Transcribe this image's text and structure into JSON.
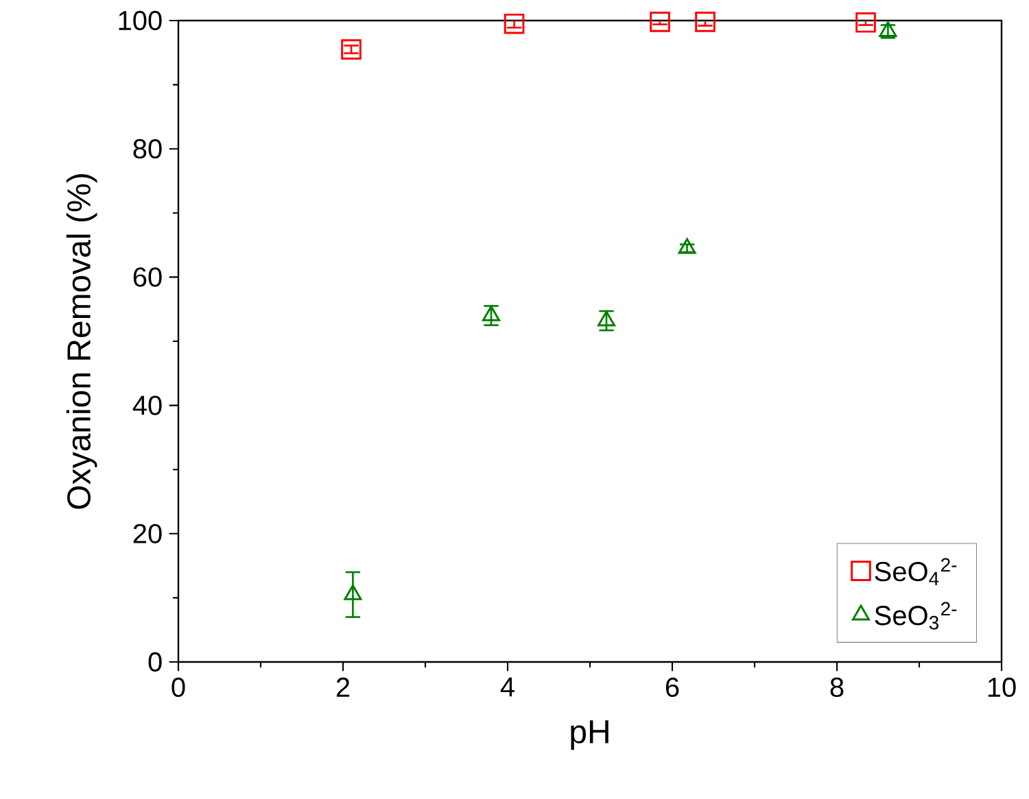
{
  "chart_data": {
    "type": "scatter",
    "xlabel": "pH",
    "ylabel": "Oxyanion Removal (%)",
    "xlim": [
      0,
      10
    ],
    "xticks": [
      0,
      2,
      4,
      6,
      8,
      10
    ],
    "ylim": [
      0,
      100
    ],
    "yticks": [
      0,
      20,
      40,
      60,
      80,
      100
    ],
    "legend": "bottom right",
    "grid": false,
    "series": [
      {
        "name": "SeO$_{4}$$^{2-}$",
        "color": "#ff0000",
        "marker": "square",
        "x": [
          2.1,
          4.08,
          5.85,
          6.4,
          8.35
        ],
        "values": [
          95.5,
          99.5,
          99.8,
          99.8,
          99.7
        ],
        "errors": [
          0.6,
          0.6,
          0.4,
          0.6,
          0.4
        ]
      },
      {
        "name": "SeO$_{3}$$^{2-}$",
        "color": "#008000",
        "marker": "triangle",
        "x": [
          2.12,
          3.8,
          5.2,
          6.18,
          8.62
        ],
        "values": [
          10.5,
          54,
          53.2,
          64.5,
          98.3
        ],
        "errors": [
          3.5,
          1.5,
          1.5,
          0.6,
          1.0
        ]
      }
    ]
  }
}
